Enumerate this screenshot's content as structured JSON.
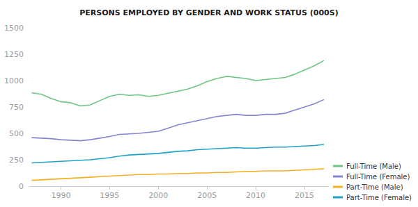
{
  "chart_data": {
    "type": "line",
    "title": "PERSONS EMPLOYED BY GENDER AND WORK STATUS (000S)",
    "x": [
      1987,
      1988,
      1989,
      1990,
      1991,
      1992,
      1993,
      1994,
      1995,
      1996,
      1997,
      1998,
      1999,
      2000,
      2001,
      2002,
      2003,
      2004,
      2005,
      2006,
      2007,
      2008,
      2009,
      2010,
      2011,
      2012,
      2013,
      2014,
      2015,
      2016,
      2017
    ],
    "series": [
      {
        "name": "Full-Time (Male)",
        "color": "#6cc583",
        "values": [
          885,
          870,
          830,
          800,
          790,
          760,
          770,
          810,
          850,
          870,
          860,
          865,
          850,
          860,
          880,
          900,
          920,
          950,
          990,
          1020,
          1040,
          1030,
          1020,
          1000,
          1010,
          1020,
          1030,
          1060,
          1100,
          1140,
          1190
        ]
      },
      {
        "name": "Full-Time (Female)",
        "color": "#8484d0",
        "values": [
          460,
          455,
          450,
          440,
          435,
          430,
          440,
          455,
          470,
          490,
          495,
          500,
          510,
          520,
          550,
          580,
          600,
          620,
          640,
          660,
          670,
          680,
          670,
          670,
          680,
          680,
          690,
          720,
          750,
          780,
          820
        ]
      },
      {
        "name": "Part-Time (Male)",
        "color": "#f5b020",
        "values": [
          55,
          60,
          65,
          70,
          75,
          80,
          85,
          90,
          95,
          100,
          105,
          110,
          110,
          115,
          115,
          120,
          120,
          125,
          125,
          130,
          130,
          135,
          140,
          140,
          145,
          145,
          145,
          150,
          155,
          160,
          165
        ]
      },
      {
        "name": "Part-Time (Female)",
        "color": "#1ea0c8",
        "values": [
          220,
          225,
          230,
          235,
          240,
          245,
          250,
          260,
          270,
          285,
          295,
          300,
          305,
          310,
          320,
          330,
          335,
          345,
          350,
          355,
          360,
          365,
          360,
          360,
          365,
          370,
          370,
          375,
          380,
          385,
          395
        ]
      }
    ],
    "xlim": [
      1986.75,
      2017.5
    ],
    "xticks": [
      1990,
      1995,
      2000,
      2005,
      2010,
      2015
    ],
    "ylim": [
      0,
      1500
    ],
    "yticks": [
      0,
      250,
      500,
      750,
      1000,
      1250,
      1500
    ],
    "grid": false,
    "legend": "bottom-right"
  }
}
